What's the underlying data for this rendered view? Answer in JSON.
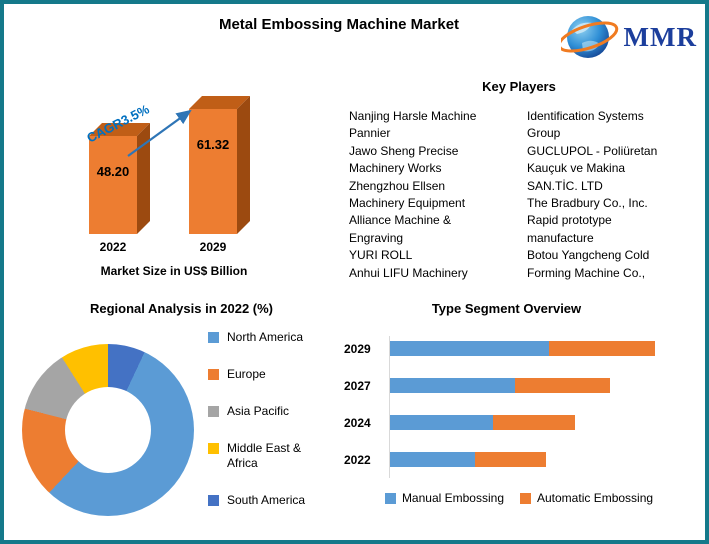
{
  "title": "Metal Embossing Machine Market",
  "logo": {
    "text": "MMR"
  },
  "market_size": {
    "cagr_label": "CAGR3.5%",
    "value_labels": [
      "48.20",
      "61.32"
    ]
  },
  "key_players": {
    "heading": "Key Players",
    "col1": [
      "Nanjing Harsle Machine",
      "Pannier",
      "Jawo Sheng Precise Machinery Works",
      "Zhengzhou Ellsen Machinery Equipment",
      "Alliance Machine & Engraving",
      "YURI ROLL",
      "Anhui LIFU Machinery"
    ],
    "col2": [
      "Identification Systems Group",
      "GUCLUPOL - Poliüretan Kauçuk ve Makina SAN.TİC. LTD",
      "The Bradbury Co., Inc.",
      "Rapid prototype manufacture",
      "Botou Yangcheng Cold Forming Machine Co.,"
    ]
  },
  "chart_data": [
    {
      "type": "bar",
      "title": "Market Size in US$ Billion",
      "categories": [
        "2022",
        "2029"
      ],
      "values": [
        48.2,
        61.32
      ],
      "annotation": "CAGR3.5%",
      "bar_color": "#ED7D31",
      "ylabel": "US$ Billion"
    },
    {
      "type": "pie",
      "subtype": "donut",
      "title": "Regional Analysis in 2022 (%)",
      "labels": [
        "North America",
        "Europe",
        "Asia Pacific",
        "Middle East & Africa",
        "South America"
      ],
      "values": [
        55,
        17,
        12,
        9,
        7
      ],
      "colors": [
        "#5B9BD5",
        "#ED7D31",
        "#A5A5A5",
        "#FFC000",
        "#4472C4"
      ],
      "legend_position": "right"
    },
    {
      "type": "bar",
      "subtype": "stacked-horizontal",
      "title": "Type Segment Overview",
      "categories": [
        "2029",
        "2027",
        "2024",
        "2022"
      ],
      "series": [
        {
          "name": "Manual Embossing",
          "color": "#5B9BD5",
          "values": [
            60,
            47,
            39,
            32
          ]
        },
        {
          "name": "Automatic Embossing",
          "color": "#ED7D31",
          "values": [
            40,
            36,
            31,
            27
          ]
        }
      ],
      "xlim": [
        0,
        100
      ],
      "legend_position": "bottom"
    }
  ]
}
